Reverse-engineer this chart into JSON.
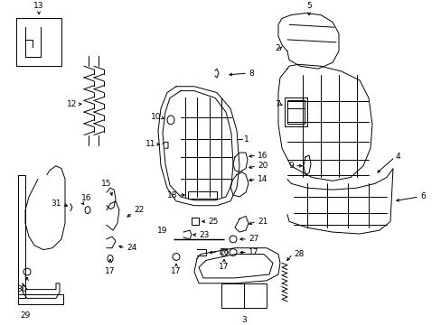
{
  "bg_color": "#ffffff",
  "line_color": "#000000",
  "fig_width": 4.89,
  "fig_height": 3.6,
  "dpi": 100,
  "lw": 0.7,
  "fontsize": 6.5
}
